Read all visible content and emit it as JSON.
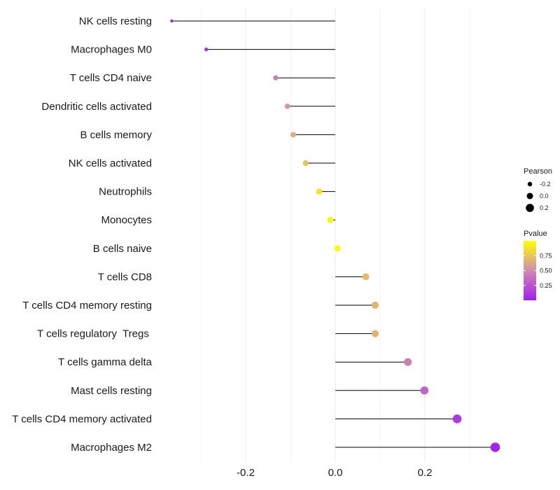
{
  "chart_data": {
    "type": "lollipop",
    "categories": [
      "NK cells resting",
      "Macrophages M0",
      "T cells CD4 naive",
      "Dendritic cells activated",
      "B cells memory",
      "NK cells activated",
      "Neutrophils",
      "Monocytes",
      "B cells naive",
      "T cells CD8",
      "T cells CD4 memory resting",
      "T cells regulatory  Tregs ",
      "T cells gamma delta",
      "Mast cells resting",
      "T cells CD4 memory activated",
      "Macrophages M2"
    ],
    "pearson": [
      -0.365,
      -0.288,
      -0.133,
      -0.107,
      -0.094,
      -0.066,
      -0.036,
      -0.011,
      0.005,
      0.068,
      0.089,
      0.089,
      0.162,
      0.199,
      0.272,
      0.357
    ],
    "pvalue": [
      0.01,
      0.08,
      0.45,
      0.55,
      0.65,
      0.75,
      0.88,
      0.96,
      0.99,
      0.72,
      0.68,
      0.68,
      0.45,
      0.33,
      0.12,
      0.02
    ],
    "xlim": [
      -0.4,
      0.4
    ],
    "xticks": [
      -0.2,
      0.0,
      0.2
    ],
    "xtick_labels": [
      "-0.2",
      "0.0",
      "0.2"
    ],
    "xminor": [
      -0.3,
      -0.1,
      0.1,
      0.3
    ],
    "title": "",
    "xlabel": "",
    "ylabel": "",
    "size_legend": {
      "title": "Pearson",
      "values": [
        -0.2,
        0.0,
        0.2
      ],
      "labels": [
        "-0.2",
        "0.0",
        "0.2"
      ]
    },
    "color_legend": {
      "title": "Pvalue",
      "ticks": [
        0.75,
        0.5,
        0.25
      ],
      "labels": [
        "0.75",
        "0.50",
        "0.25"
      ],
      "range": [
        0.0,
        1.0
      ],
      "low_color": "#A020F0",
      "mid_color": "#D18AB0",
      "high_color": "#FFFF00"
    },
    "grid": true,
    "legend_position": "right"
  },
  "colors": {
    "grid_line": "#ebebeb",
    "stem": "#000000"
  }
}
